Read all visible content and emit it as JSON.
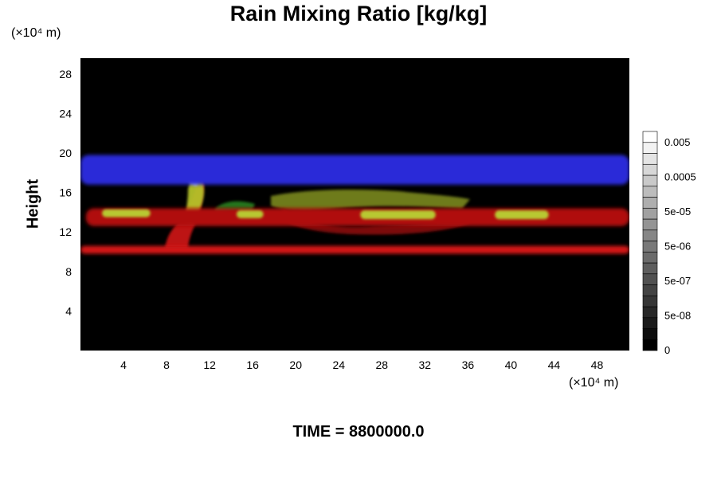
{
  "title": "Rain Mixing Ratio [kg/kg]",
  "time_label": "TIME = 8800000.0",
  "colors": {
    "background": "#ffffff",
    "plot_background": "#000000"
  },
  "chart_data": {
    "type": "heatmap",
    "title": "Rain Mixing Ratio [kg/kg]",
    "ylabel": "Height",
    "xlabel": "",
    "x_unit": "(×10⁴ m)",
    "y_unit": "(×10⁴ m)",
    "xlim": [
      0,
      51
    ],
    "ylim": [
      0,
      29.6
    ],
    "x_ticks": [
      4,
      8,
      12,
      16,
      20,
      24,
      28,
      32,
      36,
      40,
      44,
      48
    ],
    "y_ticks": [
      4,
      8,
      12,
      16,
      20,
      24,
      28
    ],
    "colorbar": {
      "labels": [
        "0",
        "5e-08",
        "5e-07",
        "5e-06",
        "5e-05",
        "0.0005",
        "0.005"
      ],
      "levels": 20,
      "colors": [
        "#000000",
        "#ffffff"
      ]
    },
    "layers": [
      {
        "name": "",
        "color": "#2a2ad8",
        "y_min": 16.8,
        "y_max": 19.8,
        "x_min": 0,
        "x_max": 51
      },
      {
        "name": "",
        "color": "#d41818",
        "y_min": 9.8,
        "y_max": 10.6,
        "x_min": 0,
        "x_max": 51
      },
      {
        "name": "",
        "color": "#b01010",
        "y_min": 12.6,
        "y_max": 14.4,
        "x_min": 0.5,
        "x_max": 51
      },
      {
        "name": "",
        "color": "#b8c830",
        "y_min": 13.5,
        "y_max": 14.3,
        "x_min": 2,
        "x_max": 6.5
      },
      {
        "name": "",
        "color": "#b8c830",
        "y_min": 13.3,
        "y_max": 14.2,
        "x_min": 26,
        "x_max": 33
      },
      {
        "name": "",
        "color": "#b8c830",
        "y_min": 13.3,
        "y_max": 14.2,
        "x_min": 38.5,
        "x_max": 43.5
      },
      {
        "name": "",
        "color": "#b8c830",
        "y_min": 13.4,
        "y_max": 14.2,
        "x_min": 14.5,
        "x_max": 17
      }
    ]
  }
}
